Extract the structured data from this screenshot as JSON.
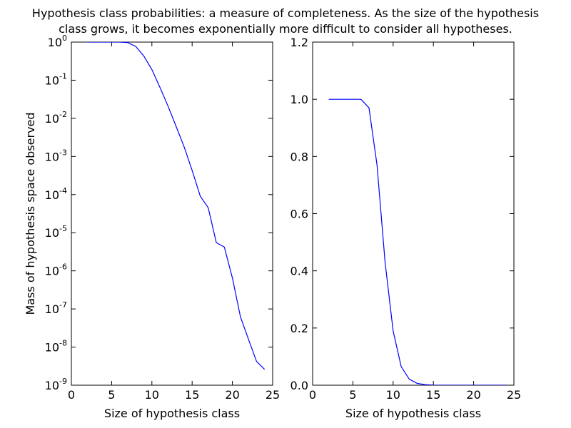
{
  "figure": {
    "title_line1": "Hypothesis class probabilities: a measure of completeness. As the size of the hypothesis",
    "title_line2": "class grows, it becomes exponentially more difficult to consider all hypotheses."
  },
  "colors": {
    "series": "#0000ff",
    "axes": "#000000",
    "background": "#ffffff"
  },
  "chart_data": [
    {
      "type": "line",
      "xlabel": "Size of hypothesis class",
      "ylabel": "Mass of hypothesis space observed",
      "xlim": [
        0,
        25
      ],
      "ylim": [
        1e-09,
        1
      ],
      "yscale": "log",
      "grid": false,
      "xticks": [
        0,
        5,
        10,
        15,
        20,
        25
      ],
      "yticks": [
        {
          "value": 1,
          "base": "10",
          "exp": "0"
        },
        {
          "value": 0.1,
          "base": "10",
          "exp": "-1"
        },
        {
          "value": 0.01,
          "base": "10",
          "exp": "-2"
        },
        {
          "value": 0.001,
          "base": "10",
          "exp": "-3"
        },
        {
          "value": 0.0001,
          "base": "10",
          "exp": "-4"
        },
        {
          "value": 1e-05,
          "base": "10",
          "exp": "-5"
        },
        {
          "value": 1e-06,
          "base": "10",
          "exp": "-6"
        },
        {
          "value": 1e-07,
          "base": "10",
          "exp": "-7"
        },
        {
          "value": 1e-08,
          "base": "10",
          "exp": "-8"
        },
        {
          "value": 1e-09,
          "base": "10",
          "exp": "-9"
        }
      ],
      "x": [
        2,
        3,
        4,
        5,
        6,
        7,
        8,
        9,
        10,
        11,
        12,
        13,
        14,
        15,
        16,
        17,
        18,
        19,
        20,
        21,
        22,
        23,
        24
      ],
      "y": [
        1.0,
        1.0,
        1.0,
        1.0,
        1.0,
        0.97,
        0.77,
        0.43,
        0.19,
        0.065,
        0.021,
        0.0062,
        0.0018,
        0.00043,
        9.2e-05,
        4.5e-05,
        5.5e-06,
        4.2e-06,
        6.5e-07,
        6.2e-08,
        1.6e-08,
        4.2e-09,
        2.6e-09
      ]
    },
    {
      "type": "line",
      "xlabel": "Size of hypothesis class",
      "ylabel": "",
      "xlim": [
        0,
        25
      ],
      "ylim": [
        0,
        1.2
      ],
      "grid": false,
      "xticks": [
        0,
        5,
        10,
        15,
        20,
        25
      ],
      "yticks": [
        0.0,
        0.2,
        0.4,
        0.6,
        0.8,
        1.0,
        1.2
      ],
      "ytick_labels": [
        "0.0",
        "0.2",
        "0.4",
        "0.6",
        "0.8",
        "1.0",
        "1.2"
      ],
      "x": [
        2,
        3,
        4,
        5,
        6,
        7,
        8,
        9,
        10,
        11,
        12,
        13,
        14,
        15,
        16,
        17,
        18,
        19,
        20,
        21,
        22,
        23,
        24
      ],
      "y": [
        1.0,
        1.0,
        1.0,
        1.0,
        1.0,
        0.97,
        0.77,
        0.43,
        0.19,
        0.065,
        0.021,
        0.0062,
        0.0018,
        0.00043,
        9.2e-05,
        4.5e-05,
        5.5e-06,
        4.2e-06,
        6.5e-07,
        6.2e-08,
        1.6e-08,
        4.2e-09,
        2.6e-09
      ]
    }
  ]
}
